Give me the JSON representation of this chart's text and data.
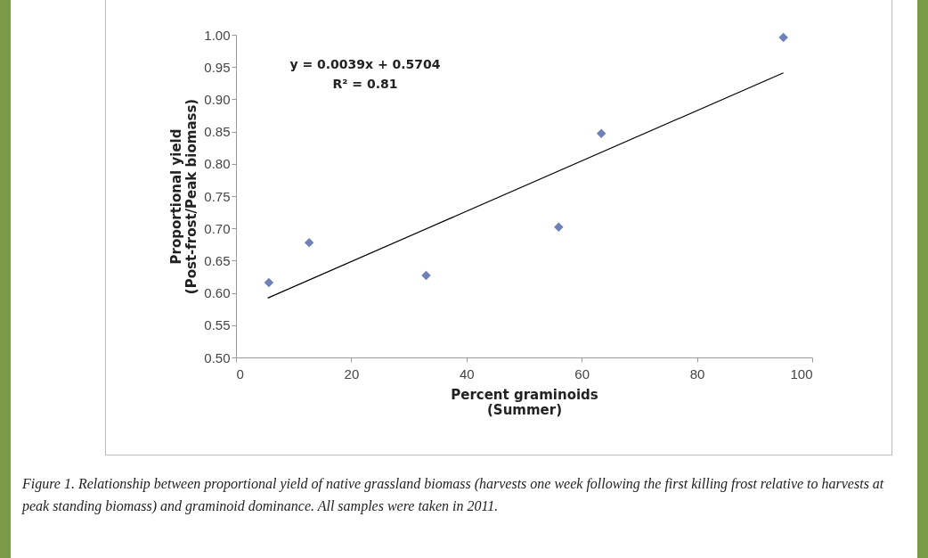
{
  "chart_data": {
    "type": "scatter",
    "xlabel": "Percent graminoids\n(Summer)",
    "ylabel": "Proportional yield\n(Post-frost/Peak biomass)",
    "x": [
      5.7,
      12.7,
      33,
      56,
      63.4,
      95
    ],
    "series": [
      {
        "color": "#7080b8",
        "marker": "diamond",
        "values": [
          0.616,
          0.678,
          0.627,
          0.702,
          0.847,
          0.996
        ]
      },
      {
        "type": "line",
        "color": "#000000",
        "x": [
          5.5,
          95
        ],
        "values": [
          0.592,
          0.941
        ]
      }
    ],
    "xlim": [
      0,
      100
    ],
    "xticks": [
      0,
      20,
      40,
      60,
      80,
      100
    ],
    "ylim": [
      0.5,
      1.0
    ],
    "yticks": [
      {
        "value": 0.5,
        "label": "0.50"
      },
      {
        "value": 0.55,
        "label": "0.55"
      },
      {
        "value": 0.6,
        "label": "0.60"
      },
      {
        "value": 0.65,
        "label": "0.65"
      },
      {
        "value": 0.7,
        "label": "0.70"
      },
      {
        "value": 0.75,
        "label": "0.75"
      },
      {
        "value": 0.8,
        "label": "0.80"
      },
      {
        "value": 0.85,
        "label": "0.85"
      },
      {
        "value": 0.9,
        "label": "0.90"
      },
      {
        "value": 0.95,
        "label": "0.95"
      },
      {
        "value": 1.0,
        "label": "1.00"
      }
    ],
    "grid": false,
    "annotations": [
      "y = 0.0039x + 0.5704",
      "R² = 0.81",
      "Figure 1.  Relationship between proportional yield of native grassland biomass (harvests one week following the first killing frost relative to harvests at peak standing biomass) and graminoid dominance.  All samples were taken in 2011."
    ]
  }
}
